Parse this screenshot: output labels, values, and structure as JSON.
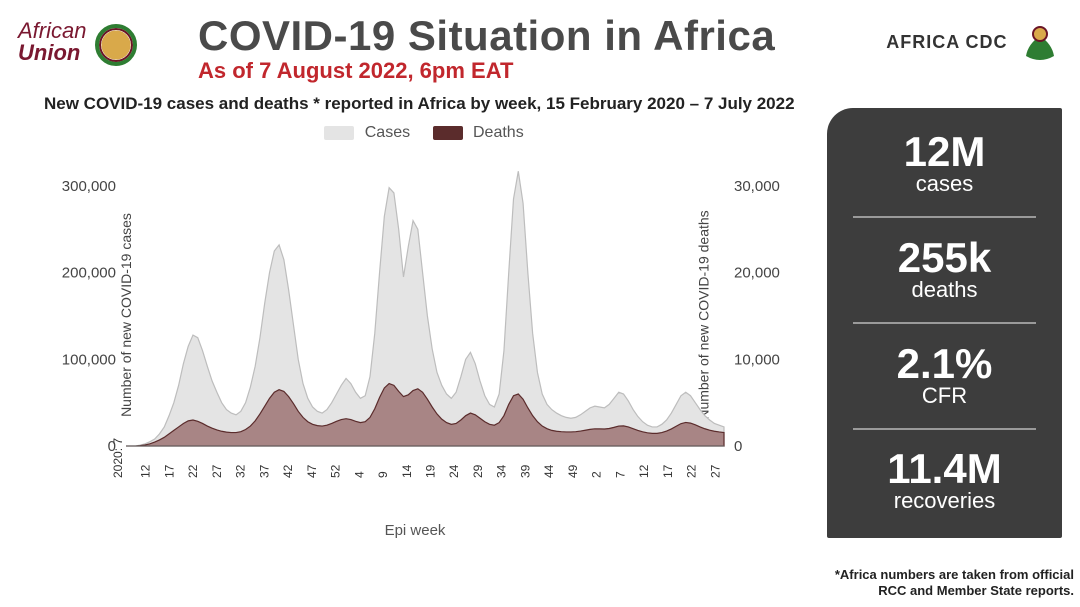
{
  "header": {
    "au_logo_line1": "African",
    "au_logo_line2": "Union",
    "title": "COVID-19 Situation in Africa",
    "subtitle": "As of 7 August 2022, 6pm EAT",
    "cdc_label": "AFRICA CDC"
  },
  "subheader": "New COVID-19 cases and deaths * reported in Africa by week, 15 February 2020 – 7 July 2022",
  "chart": {
    "type": "area",
    "legend": {
      "cases": "Cases",
      "deaths": "Deaths"
    },
    "colors": {
      "cases_fill": "#e4e4e4",
      "cases_stroke": "#bdbdbd",
      "deaths_fill": "#a88585",
      "deaths_stroke": "#5b2c2c",
      "axis": "#666666",
      "text": "#444444",
      "background": "#ffffff"
    },
    "y1": {
      "label": "Number of new COVID-19 cases",
      "ticks": [
        0,
        100000,
        200000,
        300000
      ],
      "tick_labels": [
        "0",
        "100,000",
        "200,000",
        "300,000"
      ],
      "max": 330000
    },
    "y2": {
      "label": "Number of new COVID-19 deaths",
      "ticks": [
        0,
        10000,
        20000,
        30000
      ],
      "tick_labels": [
        "0",
        "10,000",
        "20,000",
        "30,000"
      ],
      "max": 33000
    },
    "x": {
      "label": "Epi week",
      "first_tick_prefix": "2020: 7",
      "ticks": [
        "12",
        "17",
        "22",
        "27",
        "32",
        "37",
        "42",
        "47",
        "52",
        "4",
        "9",
        "14",
        "19",
        "24",
        "29",
        "34",
        "39",
        "44",
        "49",
        "2",
        "7",
        "12",
        "17",
        "22",
        "27"
      ]
    },
    "series_cases": [
      0,
      0,
      0,
      1000,
      2500,
      5000,
      8000,
      14000,
      22000,
      35000,
      50000,
      70000,
      95000,
      115000,
      128000,
      125000,
      110000,
      92000,
      75000,
      62000,
      50000,
      42000,
      38000,
      36000,
      40000,
      50000,
      68000,
      92000,
      125000,
      165000,
      200000,
      225000,
      232000,
      215000,
      180000,
      140000,
      100000,
      72000,
      55000,
      45000,
      40000,
      38000,
      42000,
      50000,
      60000,
      70000,
      78000,
      72000,
      62000,
      55000,
      58000,
      80000,
      130000,
      200000,
      265000,
      298000,
      292000,
      250000,
      195000,
      230000,
      260000,
      250000,
      200000,
      150000,
      112000,
      85000,
      70000,
      60000,
      55000,
      62000,
      80000,
      100000,
      108000,
      95000,
      75000,
      58000,
      48000,
      45000,
      60000,
      110000,
      200000,
      285000,
      317000,
      280000,
      200000,
      130000,
      85000,
      60000,
      48000,
      42000,
      38000,
      35000,
      33000,
      32000,
      33000,
      36000,
      40000,
      44000,
      46000,
      45000,
      44000,
      48000,
      55000,
      62000,
      60000,
      52000,
      42000,
      34000,
      28000,
      24000,
      22000,
      22000,
      25000,
      30000,
      38000,
      48000,
      58000,
      62000,
      58000,
      50000,
      42000,
      35000,
      30000,
      26000,
      24000,
      22000
    ],
    "series_deaths": [
      0,
      0,
      0,
      50,
      120,
      250,
      450,
      700,
      1000,
      1400,
      1800,
      2200,
      2600,
      2900,
      3000,
      2850,
      2600,
      2300,
      2050,
      1850,
      1700,
      1600,
      1550,
      1550,
      1650,
      1900,
      2300,
      2900,
      3700,
      4600,
      5500,
      6200,
      6500,
      6300,
      5700,
      4900,
      4000,
      3300,
      2800,
      2500,
      2350,
      2300,
      2400,
      2600,
      2850,
      3050,
      3150,
      3050,
      2850,
      2700,
      2800,
      3300,
      4300,
      5600,
      6700,
      7200,
      7000,
      6300,
      5700,
      5900,
      6400,
      6600,
      6200,
      5400,
      4500,
      3700,
      3100,
      2700,
      2500,
      2600,
      3000,
      3500,
      3800,
      3600,
      3200,
      2800,
      2500,
      2400,
      2700,
      3500,
      4800,
      5800,
      6000,
      5400,
      4400,
      3500,
      2800,
      2300,
      2000,
      1800,
      1700,
      1650,
      1620,
      1620,
      1650,
      1720,
      1820,
      1920,
      1980,
      1980,
      1960,
      2020,
      2150,
      2300,
      2320,
      2200,
      2000,
      1800,
      1640,
      1520,
      1460,
      1460,
      1550,
      1720,
      1970,
      2280,
      2580,
      2720,
      2640,
      2440,
      2200,
      1990,
      1820,
      1700,
      1620,
      1560
    ],
    "title_fontsize": 42,
    "label_fontsize": 14,
    "tick_fontsize": 13
  },
  "stats": [
    {
      "value": "12M",
      "label": "cases"
    },
    {
      "value": "255k",
      "label": "deaths"
    },
    {
      "value": "2.1%",
      "label": "CFR"
    },
    {
      "value": "11.4M",
      "label": "recoveries"
    }
  ],
  "stats_panel": {
    "bg": "#3d3d3d",
    "fg": "#ffffff",
    "divider": "#9a9a9a"
  },
  "footnote": "*Africa numbers are taken from official RCC and Member State reports."
}
